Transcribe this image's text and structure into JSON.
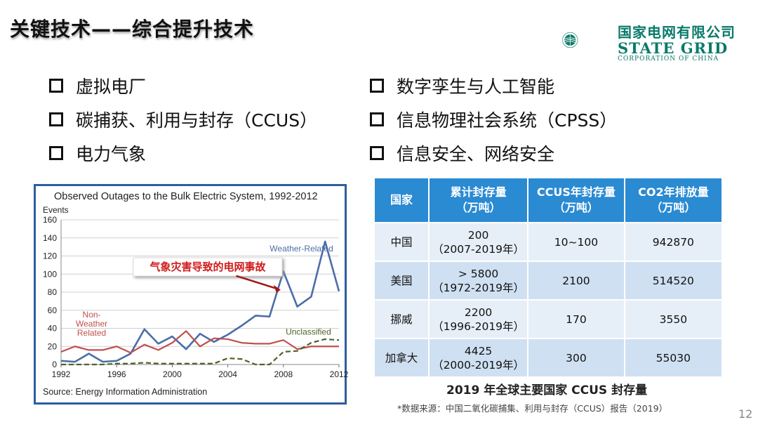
{
  "slide": {
    "title": "关键技术——综合提升技术",
    "page_number": "12"
  },
  "logo": {
    "cn": "国家电网有限公司",
    "en": "STATE GRID",
    "sub": "CORPORATION OF CHINA",
    "colors": {
      "green": "#0a7a6a",
      "blue": "#1a5fa8"
    }
  },
  "bullets_left": [
    {
      "label": "虚拟电厂"
    },
    {
      "label": "碳捕获、利用与封存（CCUS）"
    },
    {
      "label": "电力气象"
    }
  ],
  "bullets_right": [
    {
      "label": "数字孪生与人工智能"
    },
    {
      "label": "信息物理社会系统（CPSS）"
    },
    {
      "label": "信息安全、网络安全"
    }
  ],
  "chart": {
    "title": "Observed Outages to the Bulk Electric System, 1992-2012",
    "source": "Source: Energy Information Administration",
    "annotation": "气象灾害导致的电网事故",
    "frame_color": "#2e5e9e"
  },
  "chart_data": {
    "type": "line",
    "title": "Observed Outages to the Bulk Electric System, 1992-2012",
    "ylabel": "Events",
    "xlabel": "",
    "ylim": [
      0,
      160
    ],
    "xlim": [
      1992,
      2012
    ],
    "x_ticks": [
      "1992",
      "1996",
      "2000",
      "2004",
      "2008",
      "2012"
    ],
    "y_ticks": [
      "0",
      "20",
      "40",
      "60",
      "80",
      "100",
      "120",
      "140",
      "160"
    ],
    "grid": true,
    "x": [
      1992,
      1993,
      1994,
      1995,
      1996,
      1997,
      1998,
      1999,
      2000,
      2001,
      2002,
      2003,
      2004,
      2005,
      2006,
      2007,
      2008,
      2009,
      2010,
      2011,
      2012
    ],
    "series": [
      {
        "name": "Weather-Related",
        "color": "#4a6ea8",
        "values": [
          4,
          3,
          12,
          3,
          4,
          12,
          39,
          23,
          31,
          17,
          34,
          25,
          33,
          43,
          54,
          53,
          103,
          64,
          75,
          136,
          81
        ]
      },
      {
        "name": "Non-Weather Related",
        "color": "#c0504d",
        "values": [
          14,
          20,
          16,
          16,
          20,
          13,
          22,
          16,
          24,
          37,
          20,
          29,
          28,
          24,
          23,
          23,
          27,
          17,
          20,
          20,
          20
        ]
      },
      {
        "name": "Unclassified",
        "color": "#4f6228",
        "dashed": true,
        "values": [
          0,
          0,
          0,
          0,
          1,
          1,
          2,
          1,
          1,
          1,
          1,
          1,
          7,
          6,
          0,
          0,
          14,
          15,
          24,
          28,
          27
        ]
      }
    ]
  },
  "table": {
    "headers": [
      "国家",
      "累计封存量\n（万吨）",
      "CCUS年封存量\n（万吨）",
      "CO2年排放量\n（万吨）"
    ],
    "rows": [
      {
        "country": "中国",
        "cumulative": "200",
        "period": "（2007-2019年）",
        "annual": "10~100",
        "emission": "942870"
      },
      {
        "country": "美国",
        "cumulative": "> 5800",
        "period": "（1972-2019年）",
        "annual": "2100",
        "emission": "514520"
      },
      {
        "country": "挪威",
        "cumulative": "2200",
        "period": "（1996-2019年）",
        "annual": "170",
        "emission": "3550"
      },
      {
        "country": "加拿大",
        "cumulative": "4425",
        "period": "（2000-2019年）",
        "annual": "300",
        "emission": "55030"
      }
    ],
    "header_color": "#2a8ad2"
  },
  "caption": "2019 年全球主要国家 CCUS 封存量",
  "footnote": "*数据来源：中国二氧化碳捕集、利用与封存（CCUS）报告（2019）"
}
